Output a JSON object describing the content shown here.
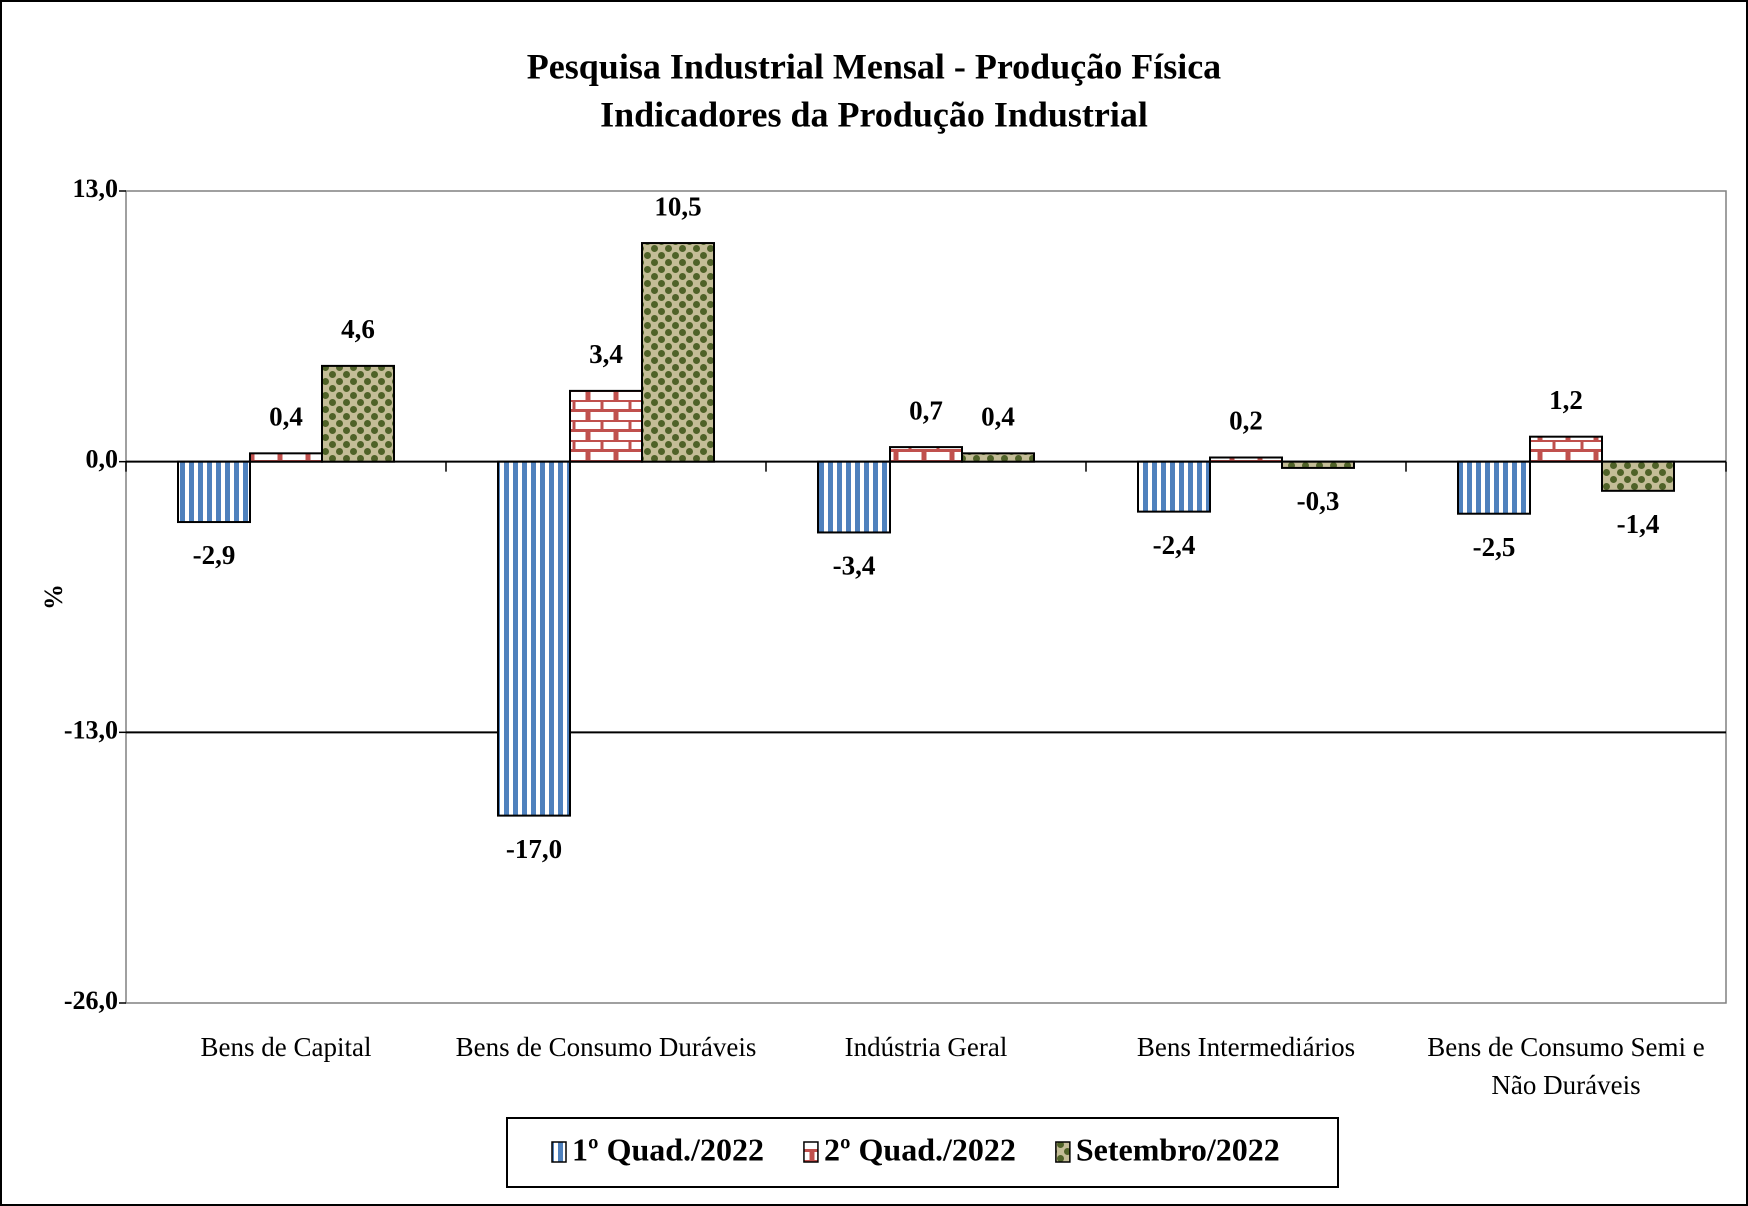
{
  "chart_data": {
    "type": "bar",
    "title": "Pesquisa Industrial Mensal - Produção Física",
    "subtitle": "Indicadores da Produção Industrial",
    "y_label": "%",
    "categories": [
      "Bens de Capital",
      "Bens de Consumo Duráveis",
      "Indústria Geral",
      "Bens Intermediários",
      "Bens de Consumo Semi e Não Duráveis"
    ],
    "series": [
      {
        "name": "1º Quad./2022",
        "color": "#4f81bd",
        "pattern": "stripes",
        "values": [
          -2.9,
          -17.0,
          -3.4,
          -2.4,
          -2.5
        ],
        "value_labels": [
          "-2,9",
          "-17,0",
          "-3,4",
          "-2,4",
          "-2,5"
        ]
      },
      {
        "name": "2º Quad./2022",
        "color": "#c0504d",
        "pattern": "bricks",
        "values": [
          0.4,
          3.4,
          0.7,
          0.2,
          1.2
        ],
        "value_labels": [
          "0,4",
          "3,4",
          "0,7",
          "0,2",
          "1,2"
        ]
      },
      {
        "name": "Setembro/2022",
        "color": "#4f6228",
        "pattern": "checker",
        "values": [
          4.6,
          10.5,
          0.4,
          -0.3,
          -1.4
        ],
        "value_labels": [
          "4,6",
          "10,5",
          "0,4",
          "-0,3",
          "-1,4"
        ]
      }
    ],
    "ylim": [
      -26,
      13
    ],
    "yticks": [
      {
        "value": -26,
        "label": "-26,0"
      },
      {
        "value": -13,
        "label": "-13,0"
      },
      {
        "value": 0,
        "label": "0,0"
      },
      {
        "value": 13,
        "label": "13,0"
      }
    ],
    "grid": true,
    "legend": "bottom"
  }
}
